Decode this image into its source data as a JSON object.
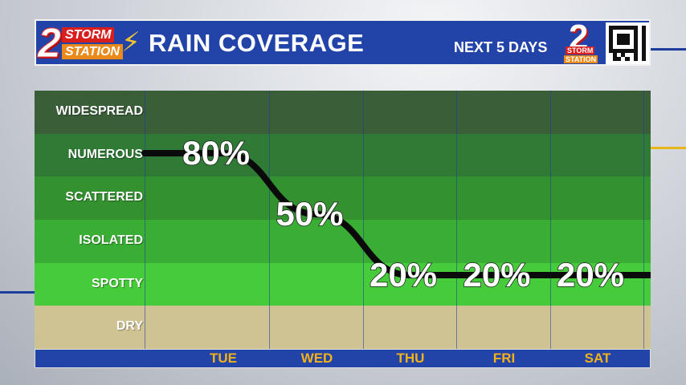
{
  "header": {
    "logo_text_top": "STORM",
    "logo_text_bottom": "STATION",
    "logo_number": "2",
    "title": "RAIN COVERAGE",
    "subtitle": "NEXT 5 DAYS",
    "right_logo_number": "2",
    "right_logo_top": "STORM",
    "right_logo_bottom": "STATION"
  },
  "colors": {
    "header_blue": "#2243a8",
    "tick_gold": "#f3b21a",
    "dry_tan": "#cfc393"
  },
  "chart_data": {
    "type": "line",
    "title": "RAIN COVERAGE",
    "subtitle": "NEXT 5 DAYS",
    "categories": [
      "TUE",
      "WED",
      "THU",
      "FRI",
      "SAT"
    ],
    "levels": [
      "WIDESPREAD",
      "NUMEROUS",
      "SCATTERED",
      "ISOLATED",
      "SPOTTY",
      "DRY"
    ],
    "level_colors": [
      "#3a5e38",
      "#2f7a34",
      "#33912f",
      "#3aae34",
      "#46cc3a",
      "#cfc393"
    ],
    "series": [
      {
        "values": [
          80,
          50,
          20,
          20,
          20
        ]
      }
    ],
    "labels": [
      "80%",
      "50%",
      "20%",
      "20%",
      "20%"
    ],
    "ylim": [
      0,
      100
    ],
    "legend": "none",
    "grid": true
  }
}
